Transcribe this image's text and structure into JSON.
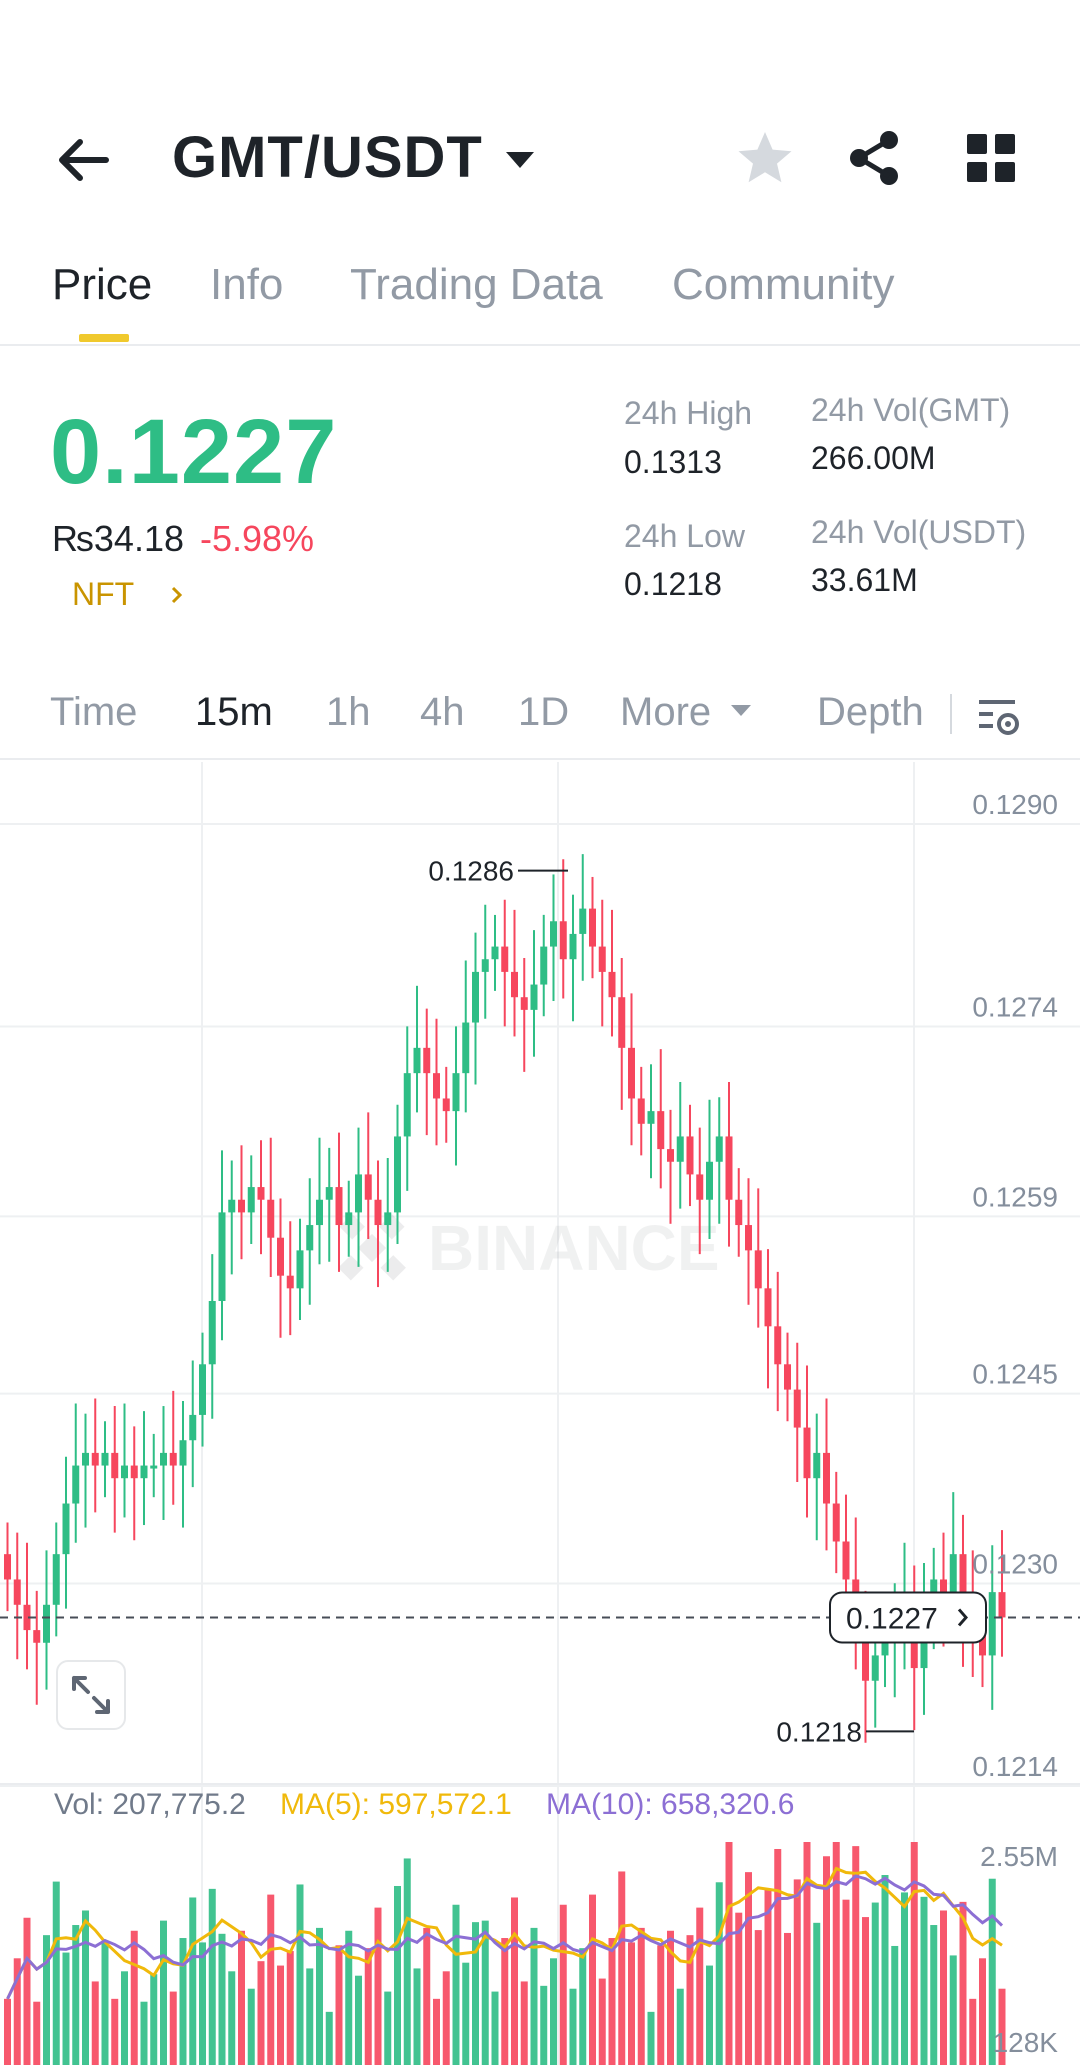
{
  "header": {
    "pair": "GMT/USDT",
    "icons": [
      "back-arrow-icon",
      "caret-down-icon",
      "star-icon",
      "share-icon",
      "grid-icon"
    ]
  },
  "tabs": [
    {
      "label": "Price",
      "active": true
    },
    {
      "label": "Info",
      "active": false
    },
    {
      "label": "Trading Data",
      "active": false
    },
    {
      "label": "Community",
      "active": false
    }
  ],
  "ticker": {
    "last_price": "0.1227",
    "fiat_price": "₨34.18",
    "change_pct": "-5.98%",
    "nft_link": "NFT",
    "high_label": "24h High",
    "high_value": "0.1313",
    "low_label": "24h Low",
    "low_value": "0.1218",
    "vol_base_label": "24h Vol(GMT)",
    "vol_base_value": "266.00M",
    "vol_quote_label": "24h Vol(USDT)",
    "vol_quote_value": "33.61M"
  },
  "intervals": {
    "items": [
      {
        "label": "Time",
        "active": false
      },
      {
        "label": "15m",
        "active": true
      },
      {
        "label": "1h",
        "active": false
      },
      {
        "label": "4h",
        "active": false
      },
      {
        "label": "1D",
        "active": false
      },
      {
        "label": "More",
        "active": false
      },
      {
        "label": "Depth",
        "active": false
      }
    ]
  },
  "colors": {
    "up": "#2ebd85",
    "down": "#f6465d",
    "accent": "#f0c92d",
    "ma5": "#f0b90b",
    "ma10": "#8c6fd4"
  },
  "chart_data": {
    "type": "candlestick",
    "interval": "15m",
    "y_ticks": [
      "0.1290",
      "0.1274",
      "0.1259",
      "0.1245",
      "0.1230",
      "0.1214"
    ],
    "ylim": [
      0.1214,
      0.129
    ],
    "current_price_label": "0.1227",
    "high_marker": "0.1286",
    "low_marker": "0.1218",
    "watermark": "BINANCE",
    "closes": [
      0.123,
      0.1228,
      0.1226,
      0.1225,
      0.1228,
      0.1232,
      0.1236,
      0.1239,
      0.124,
      0.1239,
      0.124,
      0.1238,
      0.1239,
      0.1238,
      0.1239,
      0.1239,
      0.124,
      0.1239,
      0.1241,
      0.1243,
      0.1247,
      0.1252,
      0.1259,
      0.126,
      0.1259,
      0.1261,
      0.126,
      0.1257,
      0.1254,
      0.1253,
      0.1256,
      0.1258,
      0.126,
      0.1261,
      0.1258,
      0.1259,
      0.1262,
      0.126,
      0.1258,
      0.1259,
      0.1265,
      0.127,
      0.1272,
      0.127,
      0.1268,
      0.1267,
      0.127,
      0.1274,
      0.1278,
      0.1279,
      0.128,
      0.1278,
      0.1276,
      0.1275,
      0.1277,
      0.128,
      0.1282,
      0.1279,
      0.1281,
      0.1283,
      0.128,
      0.1278,
      0.1276,
      0.1272,
      0.1268,
      0.1266,
      0.1267,
      0.1264,
      0.1263,
      0.1265,
      0.1262,
      0.126,
      0.1263,
      0.1265,
      0.126,
      0.1258,
      0.1256,
      0.1253,
      0.125,
      0.1247,
      0.1245,
      0.1242,
      0.1238,
      0.124,
      0.1236,
      0.1233,
      0.123,
      0.1226,
      0.1222,
      0.1224,
      0.1225,
      0.1226,
      0.1228,
      0.1223,
      0.1227,
      0.123,
      0.1229,
      0.1232,
      0.1228,
      0.1226,
      0.1224,
      0.1229,
      0.1227
    ],
    "vol_legend": {
      "vol": "Vol: 207,775.2",
      "ma5": "MA(5): 597,572.1",
      "ma10": "MA(10): 658,320.6"
    },
    "vol_ticks": [
      "2.55M",
      "128K"
    ]
  }
}
